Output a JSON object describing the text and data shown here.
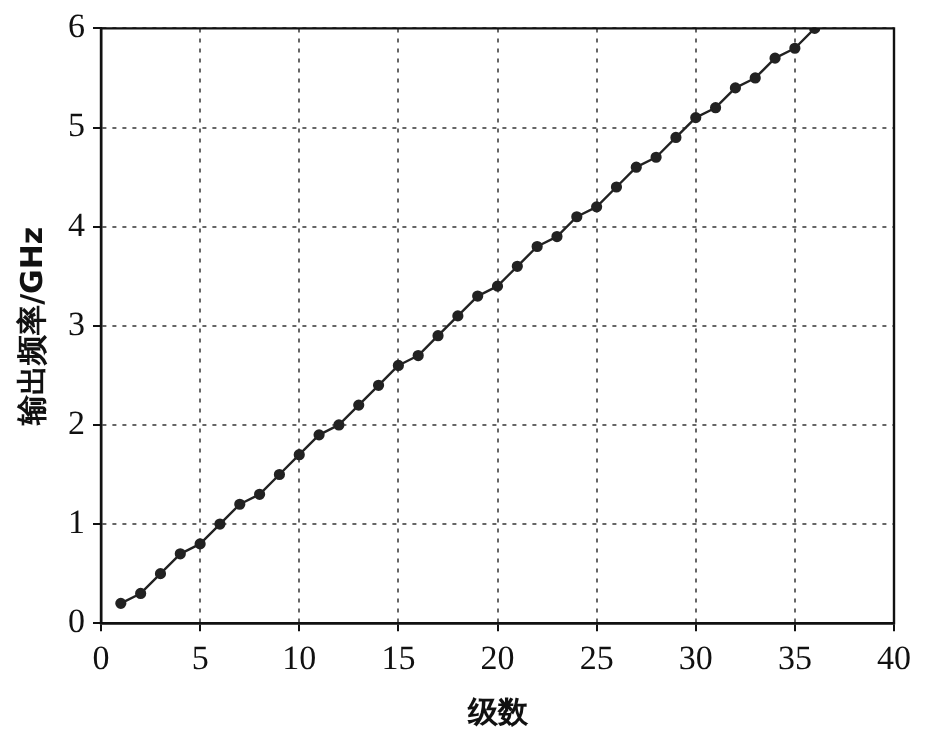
{
  "chart_data": {
    "type": "line",
    "xlabel": "级数",
    "ylabel": "输出频率/GHz",
    "x": [
      1,
      2,
      3,
      4,
      5,
      6,
      7,
      8,
      9,
      10,
      11,
      12,
      13,
      14,
      15,
      16,
      17,
      18,
      19,
      20,
      21,
      22,
      23,
      24,
      25,
      26,
      27,
      28,
      29,
      30,
      31,
      32,
      33,
      34,
      35,
      36
    ],
    "series": [
      {
        "color": "#222222",
        "values": [
          0.2,
          0.3,
          0.5,
          0.7,
          0.8,
          1.0,
          1.2,
          1.3,
          1.5,
          1.7,
          1.9,
          2.0,
          2.2,
          2.4,
          2.6,
          2.7,
          2.9,
          3.1,
          3.3,
          3.4,
          3.6,
          3.8,
          3.9,
          4.1,
          4.2,
          4.4,
          4.6,
          4.7,
          4.9,
          5.1,
          5.2,
          5.4,
          5.5,
          5.7,
          5.8,
          6.0
        ]
      }
    ],
    "xlim": [
      0,
      40
    ],
    "xticks": [
      0,
      5,
      10,
      15,
      20,
      25,
      30,
      35,
      40
    ],
    "ylim": [
      0,
      6
    ],
    "yticks": [
      0,
      1,
      2,
      3,
      4,
      5,
      6
    ],
    "grid": true,
    "marker": "circle",
    "line_style": "solid"
  }
}
